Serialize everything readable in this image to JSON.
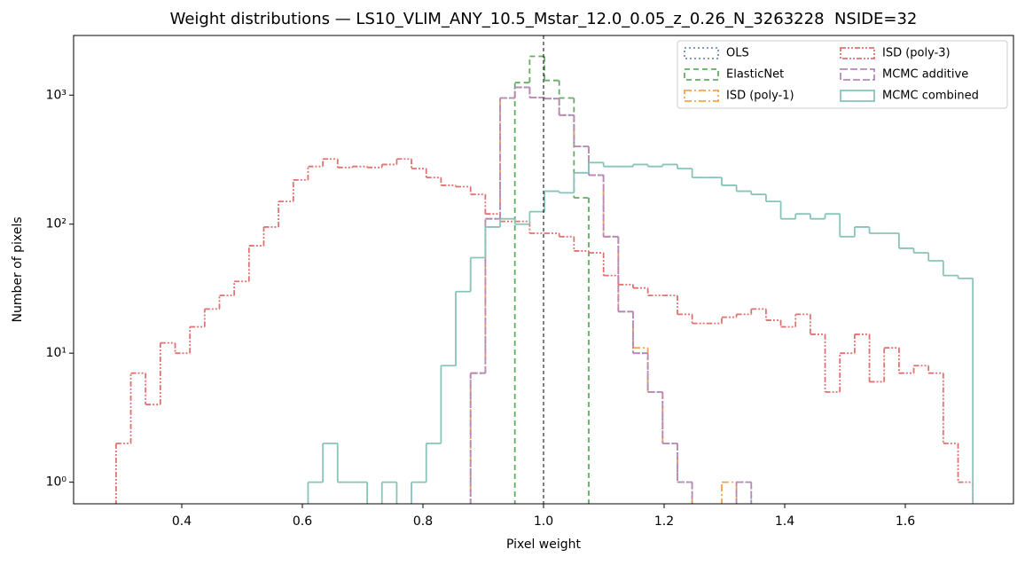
{
  "chart_data": {
    "type": "histogram",
    "title": "Weight distributions — LS10_VLIM_ANY_10.5_Mstar_12.0_0.05_z_0.26_N_3263228  NSIDE=32",
    "x_label": "Pixel weight",
    "y_label": "Number of pixels",
    "bins": [
      0.291,
      0.3155,
      0.34,
      0.3645,
      0.389,
      0.4135,
      0.438,
      0.4625,
      0.487,
      0.5115,
      0.536,
      0.5605,
      0.585,
      0.6095,
      0.634,
      0.6585,
      0.683,
      0.7075,
      0.732,
      0.7565,
      0.781,
      0.8055,
      0.83,
      0.8545,
      0.879,
      0.9035,
      0.928,
      0.9525,
      0.977,
      1.0015,
      1.026,
      1.0505,
      1.075,
      1.0995,
      1.124,
      1.1485,
      1.173,
      1.1975,
      1.222,
      1.2465,
      1.271,
      1.2955,
      1.32,
      1.3445,
      1.369,
      1.3935,
      1.418,
      1.4425,
      1.467,
      1.4915,
      1.516,
      1.5405,
      1.565,
      1.5895,
      1.614,
      1.6385,
      1.663,
      1.6875,
      1.712
    ],
    "series": [
      {
        "name": "OLS",
        "color": "#6f8fc2",
        "linestyle": "dotted",
        "values": [
          0,
          0,
          0,
          0,
          0,
          0,
          0,
          0,
          0,
          0,
          0,
          0,
          0,
          0,
          0,
          0,
          0,
          0,
          0,
          0,
          0,
          0,
          0,
          0,
          7,
          110,
          950,
          1150,
          960,
          940,
          700,
          400,
          240,
          80,
          21,
          10,
          5,
          2,
          1,
          0,
          0,
          0,
          1,
          0,
          0,
          0,
          0,
          0,
          0,
          0,
          0,
          0,
          0,
          0,
          0,
          0,
          0,
          0
        ]
      },
      {
        "name": "ElasticNet",
        "color": "#62ad62",
        "linestyle": "dashed",
        "values": [
          0,
          0,
          0,
          0,
          0,
          0,
          0,
          0,
          0,
          0,
          0,
          0,
          0,
          0,
          0,
          0,
          0,
          0,
          0,
          0,
          0,
          0,
          0,
          0,
          0,
          0,
          0,
          1250,
          2000,
          1300,
          950,
          160,
          0,
          0,
          0,
          0,
          0,
          0,
          0,
          0,
          0,
          0,
          0,
          0,
          0,
          0,
          0,
          0,
          0,
          0,
          0,
          0,
          0,
          0,
          0,
          0,
          0,
          0
        ]
      },
      {
        "name": "ISD (poly-1)",
        "color": "#f2a350",
        "linestyle": "dashdot",
        "values": [
          0,
          0,
          0,
          0,
          0,
          0,
          0,
          0,
          0,
          0,
          0,
          0,
          0,
          0,
          0,
          0,
          0,
          0,
          0,
          0,
          0,
          0,
          0,
          0,
          7,
          110,
          950,
          1150,
          960,
          940,
          700,
          400,
          240,
          80,
          21,
          11,
          5,
          2,
          1,
          0,
          0,
          1,
          0,
          0,
          0,
          0,
          0,
          0,
          0,
          0,
          0,
          0,
          0,
          0,
          0,
          0,
          0,
          0
        ]
      },
      {
        "name": "ISD (poly-3)",
        "color": "#e07272",
        "linestyle": "dashdotdot",
        "values": [
          2,
          7,
          4,
          12,
          10,
          16,
          22,
          28,
          36,
          68,
          95,
          150,
          220,
          280,
          320,
          275,
          280,
          275,
          290,
          320,
          270,
          230,
          200,
          195,
          170,
          120,
          105,
          105,
          85,
          85,
          80,
          62,
          60,
          40,
          34,
          32,
          28,
          28,
          20,
          17,
          17,
          19,
          20,
          22,
          18,
          16,
          20,
          14,
          5,
          10,
          14,
          6,
          11,
          7,
          8,
          7,
          2,
          1
        ]
      },
      {
        "name": "MCMC additive",
        "color": "#b98ab9",
        "linestyle": "longdash",
        "values": [
          0,
          0,
          0,
          0,
          0,
          0,
          0,
          0,
          0,
          0,
          0,
          0,
          0,
          0,
          0,
          0,
          0,
          0,
          0,
          0,
          0,
          0,
          0,
          0,
          7,
          110,
          950,
          1150,
          960,
          940,
          700,
          400,
          240,
          80,
          21,
          10,
          5,
          2,
          1,
          0,
          0,
          0,
          1,
          0,
          0,
          0,
          0,
          0,
          0,
          0,
          0,
          0,
          0,
          0,
          0,
          0,
          0,
          0
        ]
      },
      {
        "name": "MCMC combined",
        "color": "#88c4ba",
        "linestyle": "solid",
        "values": [
          0,
          0,
          0,
          0,
          0,
          0,
          0,
          0,
          0,
          0,
          0,
          0,
          0,
          1,
          2,
          1,
          1,
          0,
          1,
          0,
          1,
          2,
          8,
          30,
          55,
          95,
          110,
          100,
          125,
          180,
          175,
          250,
          300,
          280,
          280,
          290,
          280,
          290,
          270,
          230,
          230,
          200,
          180,
          170,
          150,
          110,
          120,
          110,
          120,
          80,
          95,
          85,
          85,
          65,
          60,
          52,
          40,
          38
        ]
      }
    ],
    "vline": 1,
    "xlim": [
      0.2206,
      1.7794
    ],
    "ylim": [
      0.68,
      2900
    ],
    "xticks": [
      0.4,
      0.6,
      0.8,
      {
        "value": 1,
        "label": "1.0"
      },
      1.2,
      1.4,
      1.6
    ],
    "yticks": [
      {
        "value": 1,
        "label": "10⁰"
      },
      {
        "value": 10,
        "label": "10¹"
      },
      {
        "value": 100,
        "label": "10²"
      },
      {
        "value": 1000,
        "label": "10³"
      }
    ],
    "yscale": "log",
    "legend_position": "upper right",
    "legend_columns": 2
  }
}
